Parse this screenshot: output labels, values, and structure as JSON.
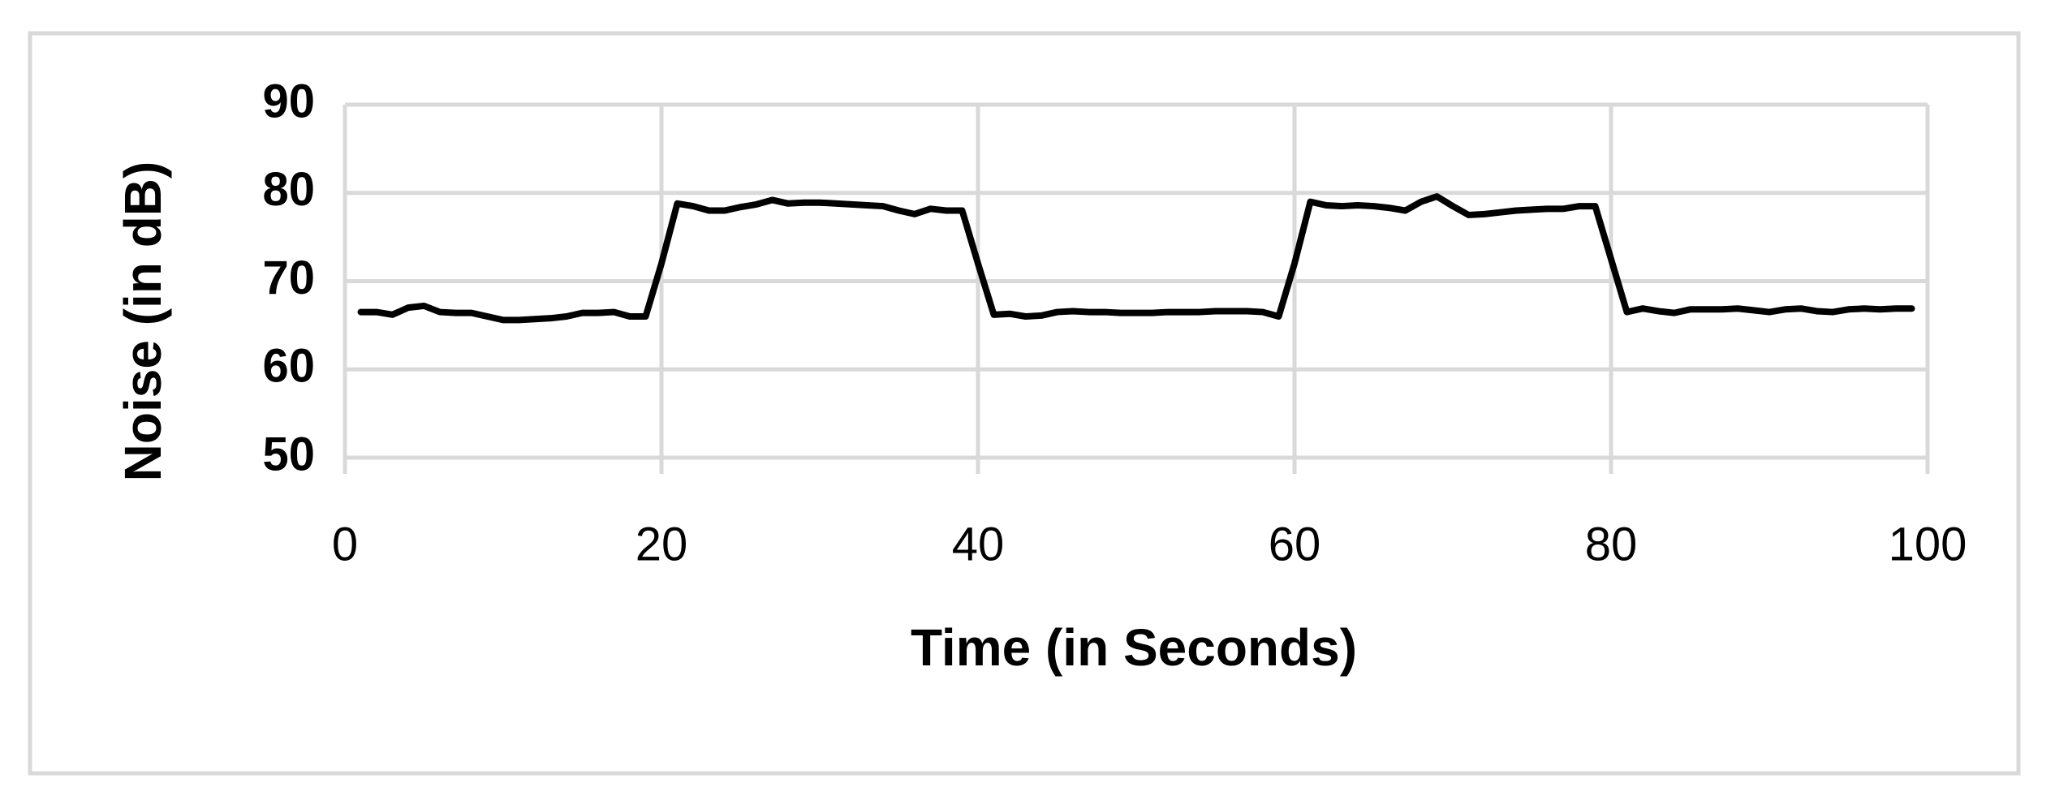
{
  "chart_data": {
    "type": "line",
    "xlabel": "Time (in Seconds)",
    "ylabel": "Noise (in dB)",
    "x": [
      1,
      2,
      3,
      4,
      5,
      6,
      7,
      8,
      9,
      10,
      11,
      12,
      13,
      14,
      15,
      16,
      17,
      18,
      19,
      20,
      21,
      22,
      23,
      24,
      25,
      26,
      27,
      28,
      29,
      30,
      31,
      32,
      33,
      34,
      35,
      36,
      37,
      38,
      39,
      40,
      41,
      42,
      43,
      44,
      45,
      46,
      47,
      48,
      49,
      50,
      51,
      52,
      53,
      54,
      55,
      56,
      57,
      58,
      59,
      60,
      61,
      62,
      63,
      64,
      65,
      66,
      67,
      68,
      69,
      70,
      71,
      72,
      73,
      74,
      75,
      76,
      77,
      78,
      79,
      80,
      81,
      82,
      83,
      84,
      85,
      86,
      87,
      88,
      89,
      90,
      91,
      92,
      93,
      94,
      95,
      96,
      97,
      98,
      99
    ],
    "values": [
      66.5,
      66.5,
      66.2,
      67,
      67.2,
      66.5,
      66.4,
      66.4,
      66,
      65.6,
      65.6,
      65.7,
      65.8,
      66,
      66.4,
      66.4,
      66.5,
      66,
      66,
      72,
      78.8,
      78.5,
      78,
      78,
      78.4,
      78.7,
      79.2,
      78.8,
      78.9,
      78.9,
      78.8,
      78.7,
      78.6,
      78.5,
      78,
      77.6,
      78.2,
      78,
      78,
      72,
      66.2,
      66.3,
      66,
      66.1,
      66.5,
      66.6,
      66.5,
      66.5,
      66.4,
      66.4,
      66.4,
      66.5,
      66.5,
      66.5,
      66.6,
      66.6,
      66.6,
      66.5,
      66,
      72,
      79,
      78.6,
      78.5,
      78.6,
      78.5,
      78.3,
      78,
      79,
      79.6,
      78.5,
      77.5,
      77.6,
      77.8,
      78,
      78.1,
      78.2,
      78.2,
      78.5,
      78.5,
      72.5,
      66.5,
      66.9,
      66.6,
      66.4,
      66.8,
      66.8,
      66.8,
      66.9,
      66.7,
      66.5,
      66.8,
      66.9,
      66.6,
      66.5,
      66.8,
      66.9,
      66.8,
      66.9,
      66.9
    ],
    "color": "#000000",
    "xlim": [
      0,
      100
    ],
    "xticks": [
      0,
      20,
      40,
      60,
      80,
      100
    ],
    "ylim": [
      50,
      90
    ],
    "yticks": [
      50,
      60,
      70,
      80,
      90
    ],
    "grid": true
  }
}
